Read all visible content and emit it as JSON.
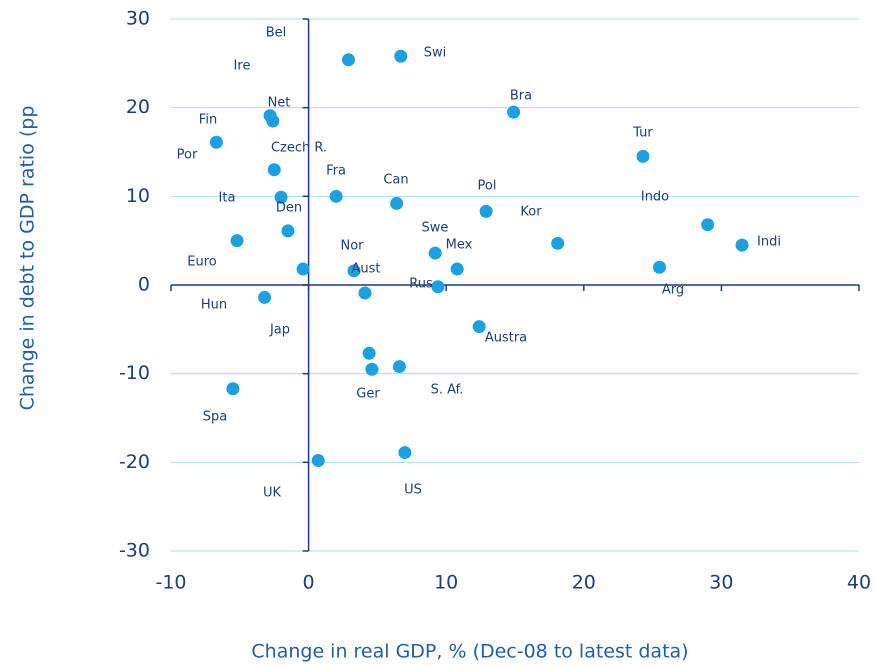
{
  "chart_data": {
    "type": "scatter",
    "xlabel": "Change in real GDP, % (Dec-08 to latest data)",
    "ylabel": "Change in debt to GDP ratio (pp",
    "color": "#1ba1e2",
    "xlim": [
      -10,
      40
    ],
    "xticks": [
      -10,
      0,
      10,
      20,
      30,
      40
    ],
    "ylim": [
      -30,
      30
    ],
    "yticks": [
      -30,
      -20,
      -10,
      0,
      10,
      20,
      30
    ],
    "grid": true,
    "labels": [
      "Bel",
      "Ire",
      "Swi",
      "Net",
      "Fin",
      "Bra",
      "Por",
      "Czech R.",
      "Tur",
      "Fra",
      "Can",
      "Pol",
      "Ita",
      "Den",
      "Indo",
      "Kor",
      "Indi",
      "Swe",
      "Mex",
      "Nor",
      "Euro",
      "Aust",
      "Rus",
      "Arg",
      "Hun",
      "Austra",
      "Jap",
      "Ger",
      "S. Af.",
      "Spa",
      "UK",
      "US"
    ],
    "x": [
      2.9,
      -2.6,
      6.7,
      -2.8,
      -6.7,
      14.9,
      -0.4,
      -2.5,
      24.3,
      2.0,
      6.4,
      12.9,
      -2.0,
      -1.5,
      29.0,
      18.1,
      31.5,
      9.2,
      10.8,
      3.3,
      -5.2,
      4.1,
      9.4,
      25.5,
      -3.2,
      12.4,
      4.4,
      4.6,
      6.6,
      -5.5,
      0.7,
      7.0
    ],
    "y": [
      25.4,
      18.5,
      25.8,
      19.1,
      16.1,
      19.5,
      1.8,
      13.0,
      14.5,
      10.0,
      9.2,
      8.3,
      9.9,
      6.1,
      6.8,
      4.7,
      4.5,
      3.6,
      1.8,
      1.6,
      5.0,
      -0.9,
      -0.2,
      2.0,
      -1.4,
      -4.7,
      -7.7,
      -9.5,
      -9.2,
      -11.7,
      -19.8,
      -18.9
    ]
  }
}
